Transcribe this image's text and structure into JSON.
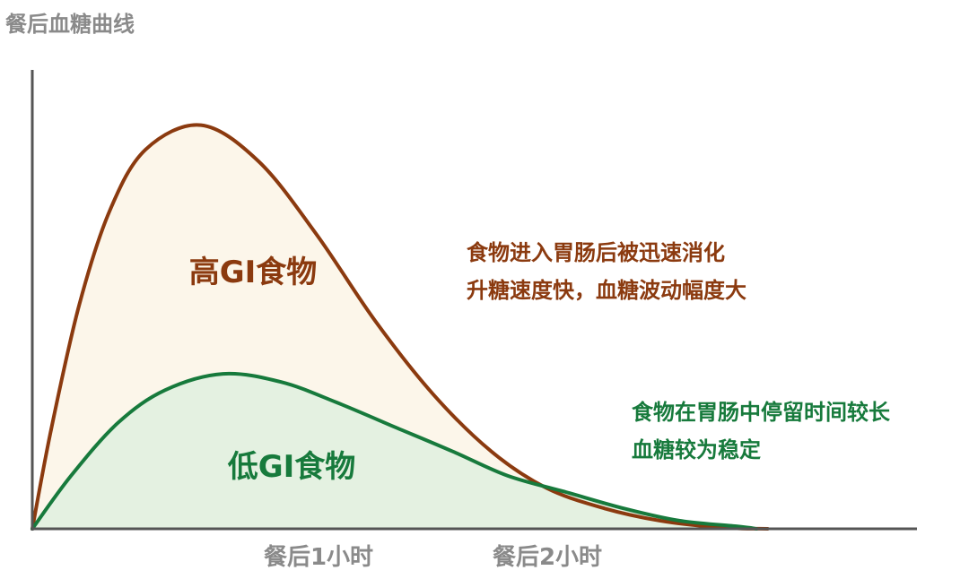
{
  "chart_data": {
    "type": "area",
    "title": "",
    "ylabel": "餐后血糖曲线",
    "xlabel": "",
    "x_unit": "hours after meal",
    "xlim": [
      0,
      3.2
    ],
    "ylim": [
      0,
      1
    ],
    "grid": false,
    "x_ticks": [
      {
        "value": 1,
        "label": "餐后1小时"
      },
      {
        "value": 2,
        "label": "餐后2小时"
      }
    ],
    "series": [
      {
        "name": "高GI食物",
        "color": "#8b3a0f",
        "fill": "#fcf6ea",
        "points": [
          [
            0.0,
            0.0
          ],
          [
            0.07,
            0.25
          ],
          [
            0.17,
            0.55
          ],
          [
            0.28,
            0.78
          ],
          [
            0.41,
            0.93
          ],
          [
            0.61,
            0.99
          ],
          [
            0.82,
            0.9
          ],
          [
            1.03,
            0.72
          ],
          [
            1.24,
            0.51
          ],
          [
            1.45,
            0.33
          ],
          [
            1.66,
            0.19
          ],
          [
            1.86,
            0.1
          ],
          [
            2.07,
            0.05
          ],
          [
            2.27,
            0.02
          ],
          [
            2.49,
            0.003
          ],
          [
            2.66,
            0.0
          ]
        ]
      },
      {
        "name": "低GI食物",
        "color": "#177a3c",
        "fill": "#e4f1e1",
        "points": [
          [
            0.0,
            0.0
          ],
          [
            0.14,
            0.13
          ],
          [
            0.31,
            0.26
          ],
          [
            0.48,
            0.34
          ],
          [
            0.69,
            0.38
          ],
          [
            0.9,
            0.36
          ],
          [
            1.1,
            0.31
          ],
          [
            1.31,
            0.25
          ],
          [
            1.52,
            0.19
          ],
          [
            1.72,
            0.13
          ],
          [
            1.93,
            0.09
          ],
          [
            2.14,
            0.05
          ],
          [
            2.34,
            0.02
          ],
          [
            2.55,
            0.006
          ],
          [
            2.62,
            0.0
          ]
        ]
      }
    ],
    "annotations": [
      {
        "series": "高GI食物",
        "lines": [
          "食物进入胃肠后被迅速消化",
          "升糖速度快，血糖波动幅度大"
        ]
      },
      {
        "series": "低GI食物",
        "lines": [
          "食物在胃肠中停留时间较长",
          "血糖较为稳定"
        ]
      }
    ]
  }
}
